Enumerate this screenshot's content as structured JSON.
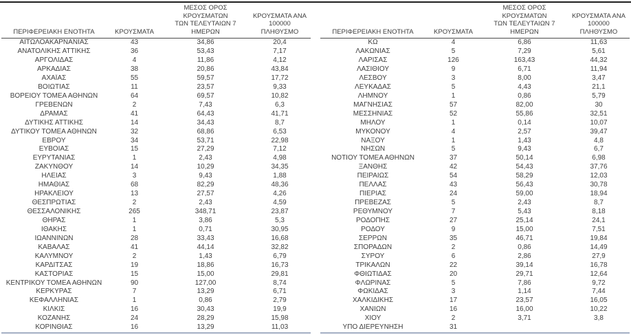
{
  "columns": {
    "region": "ΠΕΡΙΦΕΡΕΙΑΚΗ ΕΝΟΤΗΤΑ",
    "cases": "ΚΡΟΥΣΜΑΤΑ",
    "avg7": "ΜΕΣΟΣ ΟΡΟΣ ΚΡΟΥΣΜΑΤΩΝ\nΤΩΝ ΤΕΛΕΥΤΑΙΩΝ 7\nΗΜΕΡΩΝ",
    "per100k": "ΚΡΟΥΣΜΑΤΑ ΑΝΑ 100000\nΠΛΗΘΥΣΜΟ"
  },
  "tables": [
    {
      "id": "left",
      "rows": [
        [
          "ΑΙΤΩΛΟΑΚΑΡΝΑΝΙΑΣ",
          "43",
          "34,86",
          "20,4"
        ],
        [
          "ΑΝΑΤΟΛΙΚΗΣ ΑΤΤΙΚΗΣ",
          "36",
          "53,43",
          "7,17"
        ],
        [
          "ΑΡΓΟΛΙΔΑΣ",
          "4",
          "11,86",
          "4,12"
        ],
        [
          "ΑΡΚΑΔΙΑΣ",
          "38",
          "20,86",
          "43,84"
        ],
        [
          "ΑΧΑΪΑΣ",
          "55",
          "59,57",
          "17,72"
        ],
        [
          "ΒΟΙΩΤΙΑΣ",
          "11",
          "23,57",
          "9,33"
        ],
        [
          "ΒΟΡΕΙΟΥ ΤΟΜΕΑ ΑΘΗΝΩΝ",
          "64",
          "69,57",
          "10,82"
        ],
        [
          "ΓΡΕΒΕΝΩΝ",
          "2",
          "7,43",
          "6,3"
        ],
        [
          "ΔΡΑΜΑΣ",
          "41",
          "64,43",
          "41,71"
        ],
        [
          "ΔΥΤΙΚΗΣ ΑΤΤΙΚΗΣ",
          "14",
          "34,43",
          "8,7"
        ],
        [
          "ΔΥΤΙΚΟΥ ΤΟΜΕΑ ΑΘΗΝΩΝ",
          "32",
          "68,86",
          "6,53"
        ],
        [
          "ΕΒΡΟΥ",
          "34",
          "53,71",
          "22,98"
        ],
        [
          "ΕΥΒΟΙΑΣ",
          "15",
          "27,29",
          "7,12"
        ],
        [
          "ΕΥΡΥΤΑΝΙΑΣ",
          "1",
          "2,43",
          "4,98"
        ],
        [
          "ΖΑΚΥΝΘΟΥ",
          "14",
          "10,29",
          "34,35"
        ],
        [
          "ΗΛΕΙΑΣ",
          "3",
          "9,43",
          "1,88"
        ],
        [
          "ΗΜΑΘΙΑΣ",
          "68",
          "82,29",
          "48,36"
        ],
        [
          "ΗΡΑΚΛΕΙΟΥ",
          "13",
          "27,57",
          "4,26"
        ],
        [
          "ΘΕΣΠΡΩΤΙΑΣ",
          "2",
          "2,43",
          "4,59"
        ],
        [
          "ΘΕΣΣΑΛΟΝΙΚΗΣ",
          "265",
          "348,71",
          "23,87"
        ],
        [
          "ΘΗΡΑΣ",
          "1",
          "3,86",
          "5,3"
        ],
        [
          "ΙΘΑΚΗΣ",
          "1",
          "0,71",
          "30,95"
        ],
        [
          "ΙΩΑΝΝΙΝΩΝ",
          "28",
          "33,43",
          "16,68"
        ],
        [
          "ΚΑΒΑΛΑΣ",
          "41",
          "44,14",
          "32,82"
        ],
        [
          "ΚΑΛΥΜΝΟΥ",
          "2",
          "1,43",
          "6,79"
        ],
        [
          "ΚΑΡΔΙΤΣΑΣ",
          "19",
          "18,86",
          "16,73"
        ],
        [
          "ΚΑΣΤΟΡΙΑΣ",
          "15",
          "15,00",
          "29,81"
        ],
        [
          "ΚΕΝΤΡΙΚΟΥ ΤΟΜΕΑ ΑΘΗΝΩΝ",
          "90",
          "127,00",
          "8,74"
        ],
        [
          "ΚΕΡΚΥΡΑΣ",
          "7",
          "13,29",
          "6,71"
        ],
        [
          "ΚΕΦΑΛΛΗΝΙΑΣ",
          "1",
          "0,86",
          "2,79"
        ],
        [
          "ΚΙΛΚΙΣ",
          "16",
          "30,43",
          "19,9"
        ],
        [
          "ΚΟΖΑΝΗΣ",
          "24",
          "28,29",
          "15,98"
        ],
        [
          "ΚΟΡΙΝΘΙΑΣ",
          "16",
          "13,29",
          "11,03"
        ]
      ]
    },
    {
      "id": "right",
      "rows": [
        [
          "ΚΩ",
          "4",
          "6,86",
          "11,63"
        ],
        [
          "ΛΑΚΩΝΙΑΣ",
          "5",
          "7,29",
          "5,61"
        ],
        [
          "ΛΑΡΙΣΑΣ",
          "126",
          "163,43",
          "44,32"
        ],
        [
          "ΛΑΣΙΘΙΟΥ",
          "9",
          "6,71",
          "11,94"
        ],
        [
          "ΛΕΣΒΟΥ",
          "3",
          "8,00",
          "3,47"
        ],
        [
          "ΛΕΥΚΑΔΑΣ",
          "5",
          "4,43",
          "21,1"
        ],
        [
          "ΛΗΜΝΟΥ",
          "1",
          "0,86",
          "5,79"
        ],
        [
          "ΜΑΓΝΗΣΙΑΣ",
          "57",
          "82,00",
          "30"
        ],
        [
          "ΜΕΣΣΗΝΙΑΣ",
          "52",
          "55,86",
          "32,51"
        ],
        [
          "ΜΗΛΟΥ",
          "1",
          "0,14",
          "10,07"
        ],
        [
          "ΜΥΚΟΝΟΥ",
          "4",
          "2,57",
          "39,47"
        ],
        [
          "ΝΑΞΟΥ",
          "1",
          "1,43",
          "4,8"
        ],
        [
          "ΝΗΣΩΝ",
          "5",
          "9,43",
          "6,7"
        ],
        [
          "ΝΟΤΙΟΥ ΤΟΜΕΑ ΑΘΗΝΩΝ",
          "37",
          "50,14",
          "6,98"
        ],
        [
          "ΞΑΝΘΗΣ",
          "42",
          "54,43",
          "37,76"
        ],
        [
          "ΠΕΙΡΑΙΩΣ",
          "54",
          "58,29",
          "12,03"
        ],
        [
          "ΠΕΛΛΑΣ",
          "43",
          "56,43",
          "30,78"
        ],
        [
          "ΠΙΕΡΙΑΣ",
          "24",
          "59,00",
          "18,94"
        ],
        [
          "ΠΡΕΒΕΖΑΣ",
          "5",
          "2,43",
          "8,7"
        ],
        [
          "ΡΕΘΥΜΝΟΥ",
          "7",
          "5,43",
          "8,18"
        ],
        [
          "ΡΟΔΟΠΗΣ",
          "27",
          "25,14",
          "24,1"
        ],
        [
          "ΡΟΔΟΥ",
          "9",
          "15,00",
          "7,51"
        ],
        [
          "ΣΕΡΡΩΝ",
          "35",
          "46,71",
          "19,84"
        ],
        [
          "ΣΠΟΡΑΔΩΝ",
          "2",
          "0,86",
          "14,49"
        ],
        [
          "ΣΥΡΟΥ",
          "6",
          "2,86",
          "27,9"
        ],
        [
          "ΤΡΙΚΑΛΩΝ",
          "22",
          "39,14",
          "16,78"
        ],
        [
          "ΦΘΙΩΤΙΔΑΣ",
          "20",
          "29,71",
          "12,64"
        ],
        [
          "ΦΛΩΡΙΝΑΣ",
          "5",
          "7,86",
          "9,72"
        ],
        [
          "ΦΩΚΙΔΑΣ",
          "3",
          "1,14",
          "7,44"
        ],
        [
          "ΧΑΛΚΙΔΙΚΗΣ",
          "17",
          "23,57",
          "16,05"
        ],
        [
          "ΧΑΝΙΩΝ",
          "16",
          "16,00",
          "10,22"
        ],
        [
          "ΧΙΟΥ",
          "2",
          "3,71",
          "3,8"
        ],
        [
          "ΥΠΟ ΔΙΕΡΕΥΝΗΣΗ",
          "31",
          "",
          ""
        ]
      ]
    }
  ],
  "colors": {
    "text": "#3f3f3f",
    "top_rule": "#1f1f1f",
    "header_rule": "#4a4a4a",
    "bottom_rule": "#a4afc4",
    "background": "#ffffff"
  }
}
